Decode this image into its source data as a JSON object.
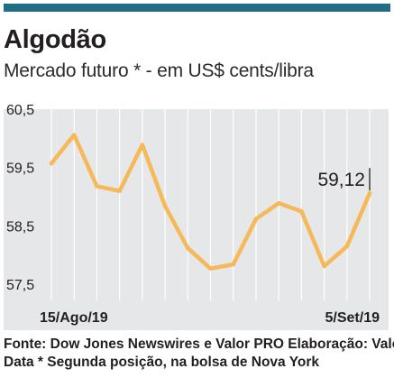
{
  "title": "Algodão",
  "subtitle": "Mercado futuro * - em US$ cents/libra",
  "source": {
    "line1": "Fonte: Dow Jones Newswires e Valor PRO Elaboração: Valor",
    "line2": "Data * Segunda posição, na bolsa de Nova York"
  },
  "colors": {
    "top_bar": "#1f6e86",
    "plot_bg": "#e6e7e8",
    "line": "#f5b95a",
    "text": "#231f20"
  },
  "chart_data": {
    "type": "line",
    "title": "Algodão",
    "subtitle": "Mercado futuro * - em US$ cents/libra",
    "xlabel": "",
    "ylabel": "",
    "ylim": [
      57.5,
      60.5
    ],
    "yticks": [
      60.5,
      59.5,
      58.5,
      57.5
    ],
    "ytick_labels": [
      "60,5",
      "59,5",
      "58,5",
      "57,5"
    ],
    "x_labels": [
      {
        "index": 0,
        "label": "15/Ago/19"
      },
      {
        "index": 15,
        "label": "5/Set/19"
      }
    ],
    "grid": "vertical",
    "series": [
      {
        "values": [
          59.63,
          60.12,
          59.24,
          59.16,
          59.95,
          58.9,
          58.18,
          57.83,
          57.9,
          58.68,
          58.95,
          58.81,
          57.87,
          58.21,
          59.12
        ]
      }
    ],
    "annotation": {
      "index": 14,
      "label": "59,12"
    }
  }
}
